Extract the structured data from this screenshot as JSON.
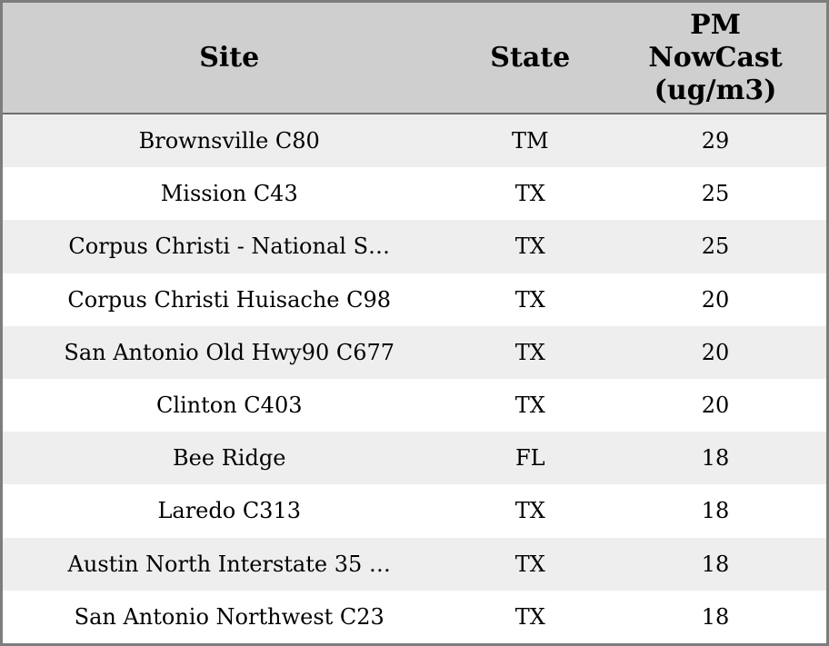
{
  "colors": {
    "header_bg": "#cfcfcf",
    "row_stripe_bg": "#eeeeee",
    "row_bg": "#ffffff",
    "outer_border": "#7d7d7d",
    "header_separator": "#6f6f6f",
    "text": "#000000"
  },
  "chart_data": {
    "type": "table",
    "title": "",
    "columns": [
      {
        "id": "site",
        "label": "Site"
      },
      {
        "id": "state",
        "label": "State"
      },
      {
        "id": "pm",
        "label": "PM NowCast (ug/m3)"
      }
    ],
    "rows": [
      {
        "site": "Brownsville C80",
        "state": "TM",
        "pm": "29"
      },
      {
        "site": "Mission C43",
        "state": "TX",
        "pm": "25"
      },
      {
        "site": "Corpus Christi - National S…",
        "state": "TX",
        "pm": "25"
      },
      {
        "site": "Corpus Christi Huisache C98",
        "state": "TX",
        "pm": "20"
      },
      {
        "site": "San Antonio Old Hwy90 C677",
        "state": "TX",
        "pm": "20"
      },
      {
        "site": "Clinton C403",
        "state": "TX",
        "pm": "20"
      },
      {
        "site": "Bee Ridge",
        "state": "FL",
        "pm": "18"
      },
      {
        "site": "Laredo C313",
        "state": "TX",
        "pm": "18"
      },
      {
        "site": "Austin North Interstate 35 …",
        "state": "TX",
        "pm": "18"
      },
      {
        "site": "San Antonio Northwest C23",
        "state": "TX",
        "pm": "18"
      }
    ]
  }
}
